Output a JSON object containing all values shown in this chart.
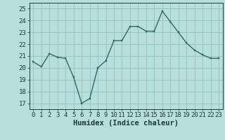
{
  "x": [
    0,
    1,
    2,
    3,
    4,
    5,
    6,
    7,
    8,
    9,
    10,
    11,
    12,
    13,
    14,
    15,
    16,
    17,
    18,
    19,
    20,
    21,
    22,
    23
  ],
  "y": [
    20.5,
    20.1,
    21.2,
    20.9,
    20.8,
    19.2,
    17.0,
    17.4,
    20.0,
    20.6,
    22.3,
    22.3,
    23.5,
    23.5,
    23.1,
    23.1,
    24.8,
    23.9,
    23.0,
    22.1,
    21.5,
    21.1,
    20.8,
    20.8
  ],
  "line_color": "#2e6b5e",
  "marker_color": "#2e6b5e",
  "bg_color": "#b8dede",
  "grid_major_color": "#90c0c0",
  "grid_minor_color": "#a8d0d0",
  "xlabel": "Humidex (Indice chaleur)",
  "ylim": [
    16.5,
    25.5
  ],
  "xlim": [
    -0.5,
    23.5
  ],
  "yticks": [
    17,
    18,
    19,
    20,
    21,
    22,
    23,
    24,
    25
  ],
  "xticks": [
    0,
    1,
    2,
    3,
    4,
    5,
    6,
    7,
    8,
    9,
    10,
    11,
    12,
    13,
    14,
    15,
    16,
    17,
    18,
    19,
    20,
    21,
    22,
    23
  ],
  "tick_fontsize": 6.5,
  "label_fontsize": 7.5,
  "tick_color": "#1a3a3a",
  "spine_color": "#1a3a3a"
}
